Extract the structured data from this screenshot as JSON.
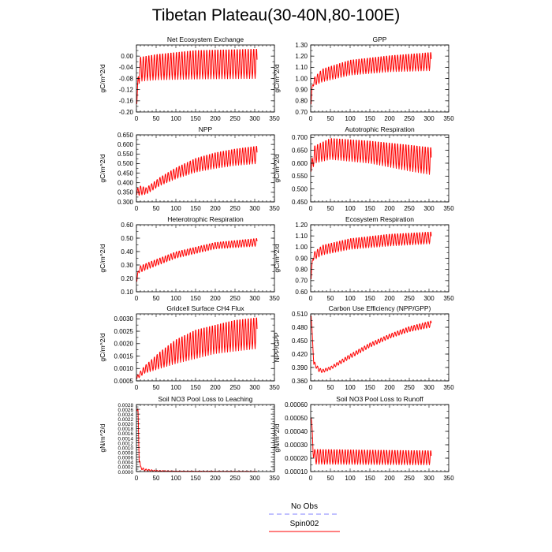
{
  "page": {
    "title": "Tibetan Plateau(30-40N,80-100E)"
  },
  "legend": {
    "entries": [
      {
        "name": "No Obs",
        "color": "#8080ff",
        "style": "dashed"
      },
      {
        "name": "Spin002",
        "color": "#ff0000",
        "style": "solid"
      }
    ]
  },
  "chart_data": [
    {
      "type": "line",
      "title": "Net Ecosystem Exchange",
      "ylabel": "gC/m^2/d",
      "xlim": [
        0,
        350
      ],
      "ylim": [
        -0.2,
        0.04
      ],
      "xticks": [
        "0",
        "50",
        "100",
        "150",
        "200",
        "250",
        "300",
        "350"
      ],
      "yticks": [
        "-0.20",
        "-0.16",
        "-0.12",
        "-0.08",
        "-0.04",
        "0.00"
      ],
      "series": [
        {
          "name": "Spin002",
          "color": "#ff0000",
          "x_end": 306,
          "period": 7,
          "upper": [
            [
              1,
              -0.155
            ],
            [
              6,
              -0.02
            ],
            [
              10,
              0.0
            ],
            [
              50,
              0.01
            ],
            [
              150,
              0.025
            ],
            [
              306,
              0.03
            ]
          ],
          "lower": [
            [
              1,
              -0.175
            ],
            [
              6,
              -0.1
            ],
            [
              10,
              -0.09
            ],
            [
              50,
              -0.085
            ],
            [
              150,
              -0.082
            ],
            [
              306,
              -0.08
            ]
          ]
        }
      ]
    },
    {
      "type": "line",
      "title": "GPP",
      "ylabel": "gC/m^2/d",
      "xlim": [
        0,
        350
      ],
      "ylim": [
        0.7,
        1.3
      ],
      "xticks": [
        "0",
        "50",
        "100",
        "150",
        "200",
        "250",
        "300",
        "350"
      ],
      "yticks": [
        "0.70",
        "0.80",
        "0.90",
        "1.00",
        "1.10",
        "1.20",
        "1.30"
      ],
      "series": [
        {
          "name": "Spin002",
          "color": "#ff0000",
          "x_end": 306,
          "period": 7,
          "upper": [
            [
              1,
              0.85
            ],
            [
              6,
              1.0
            ],
            [
              30,
              1.09
            ],
            [
              100,
              1.17
            ],
            [
              200,
              1.21
            ],
            [
              306,
              1.24
            ]
          ],
          "lower": [
            [
              1,
              0.75
            ],
            [
              6,
              0.93
            ],
            [
              30,
              0.97
            ],
            [
              100,
              1.03
            ],
            [
              200,
              1.06
            ],
            [
              306,
              1.07
            ]
          ]
        }
      ]
    },
    {
      "type": "line",
      "title": "NPP",
      "ylabel": "gC/m^2/d",
      "xlim": [
        0,
        350
      ],
      "ylim": [
        0.3,
        0.65
      ],
      "xticks": [
        "0",
        "50",
        "100",
        "150",
        "200",
        "250",
        "300",
        "350"
      ],
      "yticks": [
        "0.300",
        "0.350",
        "0.400",
        "0.450",
        "0.500",
        "0.550",
        "0.600",
        "0.650"
      ],
      "series": [
        {
          "name": "Spin002",
          "color": "#ff0000",
          "x_end": 306,
          "period": 7,
          "upper": [
            [
              1,
              0.37
            ],
            [
              10,
              0.385
            ],
            [
              25,
              0.375
            ],
            [
              60,
              0.43
            ],
            [
              100,
              0.48
            ],
            [
              150,
              0.53
            ],
            [
              200,
              0.56
            ],
            [
              250,
              0.58
            ],
            [
              306,
              0.595
            ]
          ],
          "lower": [
            [
              1,
              0.33
            ],
            [
              10,
              0.335
            ],
            [
              25,
              0.34
            ],
            [
              60,
              0.385
            ],
            [
              100,
              0.42
            ],
            [
              150,
              0.455
            ],
            [
              200,
              0.475
            ],
            [
              250,
              0.49
            ],
            [
              306,
              0.5
            ]
          ]
        }
      ]
    },
    {
      "type": "line",
      "title": "Autotrophic Respiration",
      "ylabel": "gC/m^2/d",
      "xlim": [
        0,
        350
      ],
      "ylim": [
        0.45,
        0.71
      ],
      "xticks": [
        "0",
        "50",
        "100",
        "150",
        "200",
        "250",
        "300",
        "350"
      ],
      "yticks": [
        "0.450",
        "0.500",
        "0.550",
        "0.600",
        "0.650",
        "0.700"
      ],
      "series": [
        {
          "name": "Spin002",
          "color": "#ff0000",
          "x_end": 306,
          "period": 7,
          "upper": [
            [
              1,
              0.6
            ],
            [
              10,
              0.67
            ],
            [
              50,
              0.7
            ],
            [
              150,
              0.69
            ],
            [
              250,
              0.675
            ],
            [
              306,
              0.665
            ]
          ],
          "lower": [
            [
              1,
              0.56
            ],
            [
              10,
              0.6
            ],
            [
              50,
              0.615
            ],
            [
              150,
              0.6
            ],
            [
              250,
              0.57
            ],
            [
              306,
              0.555
            ]
          ]
        }
      ]
    },
    {
      "type": "line",
      "title": "Heterotrophic Respiration",
      "ylabel": "gC/m^2/d",
      "xlim": [
        0,
        350
      ],
      "ylim": [
        0.1,
        0.6
      ],
      "xticks": [
        "0",
        "50",
        "100",
        "150",
        "200",
        "250",
        "300",
        "350"
      ],
      "yticks": [
        "0.10",
        "0.20",
        "0.30",
        "0.40",
        "0.50",
        "0.60"
      ],
      "series": [
        {
          "name": "Spin002",
          "color": "#ff0000",
          "x_end": 306,
          "period": 7,
          "upper": [
            [
              1,
              0.2
            ],
            [
              6,
              0.29
            ],
            [
              30,
              0.32
            ],
            [
              100,
              0.4
            ],
            [
              200,
              0.47
            ],
            [
              306,
              0.5
            ]
          ],
          "lower": [
            [
              1,
              0.17
            ],
            [
              6,
              0.24
            ],
            [
              30,
              0.27
            ],
            [
              100,
              0.35
            ],
            [
              200,
              0.42
            ],
            [
              306,
              0.44
            ]
          ]
        }
      ]
    },
    {
      "type": "line",
      "title": "Ecosystem Respiration",
      "ylabel": "gC/m^2/d",
      "xlim": [
        0,
        350
      ],
      "ylim": [
        0.6,
        1.2
      ],
      "xticks": [
        "0",
        "50",
        "100",
        "150",
        "200",
        "250",
        "300",
        "350"
      ],
      "yticks": [
        "0.60",
        "0.70",
        "0.80",
        "0.90",
        "1.00",
        "1.10",
        "1.20"
      ],
      "series": [
        {
          "name": "Spin002",
          "color": "#ff0000",
          "x_end": 306,
          "period": 7,
          "upper": [
            [
              1,
              0.77
            ],
            [
              6,
              0.95
            ],
            [
              30,
              1.02
            ],
            [
              100,
              1.08
            ],
            [
              200,
              1.12
            ],
            [
              306,
              1.14
            ]
          ],
          "lower": [
            [
              1,
              0.7
            ],
            [
              6,
              0.88
            ],
            [
              30,
              0.93
            ],
            [
              100,
              0.98
            ],
            [
              200,
              1.01
            ],
            [
              306,
              1.03
            ]
          ]
        }
      ]
    },
    {
      "type": "line",
      "title": "Gridcell Surface CH4 Flux",
      "ylabel": "gC/m^2/d",
      "xlim": [
        0,
        350
      ],
      "ylim": [
        0.0005,
        0.0032
      ],
      "xticks": [
        "0",
        "50",
        "100",
        "150",
        "200",
        "250",
        "300",
        "350"
      ],
      "yticks": [
        "0.0005",
        "0.0010",
        "0.0015",
        "0.0020",
        "0.0025",
        "0.0030"
      ],
      "series": [
        {
          "name": "Spin002",
          "color": "#ff0000",
          "x_end": 306,
          "period": 7,
          "upper": [
            [
              1,
              0.0007
            ],
            [
              20,
              0.0011
            ],
            [
              60,
              0.0017
            ],
            [
              100,
              0.0022
            ],
            [
              150,
              0.0026
            ],
            [
              200,
              0.0028
            ],
            [
              250,
              0.003
            ],
            [
              306,
              0.0031
            ]
          ],
          "lower": [
            [
              1,
              0.00055
            ],
            [
              20,
              0.0008
            ],
            [
              60,
              0.001
            ],
            [
              100,
              0.0012
            ],
            [
              150,
              0.0014
            ],
            [
              200,
              0.0016
            ],
            [
              250,
              0.0017
            ],
            [
              306,
              0.0018
            ]
          ]
        }
      ]
    },
    {
      "type": "line",
      "title": "Carbon Use Efficiency (NPP/GPP)",
      "ylabel": "NPP/GPP",
      "xlim": [
        0,
        350
      ],
      "ylim": [
        0.36,
        0.51
      ],
      "xticks": [
        "0",
        "50",
        "100",
        "150",
        "200",
        "250",
        "300",
        "350"
      ],
      "yticks": [
        "0.360",
        "0.390",
        "0.420",
        "0.450",
        "0.480",
        "0.510"
      ],
      "series": [
        {
          "name": "Spin002",
          "color": "#ff0000",
          "x_end": 306,
          "period": 7,
          "upper": [
            [
              1,
              0.51
            ],
            [
              3,
              0.48
            ],
            [
              8,
              0.405
            ],
            [
              20,
              0.39
            ],
            [
              30,
              0.386
            ],
            [
              50,
              0.392
            ],
            [
              100,
              0.42
            ],
            [
              150,
              0.445
            ],
            [
              200,
              0.465
            ],
            [
              250,
              0.482
            ],
            [
              306,
              0.495
            ]
          ],
          "lower": [
            [
              1,
              0.505
            ],
            [
              3,
              0.47
            ],
            [
              8,
              0.395
            ],
            [
              20,
              0.381
            ],
            [
              30,
              0.378
            ],
            [
              50,
              0.385
            ],
            [
              100,
              0.41
            ],
            [
              150,
              0.435
            ],
            [
              200,
              0.455
            ],
            [
              250,
              0.47
            ],
            [
              306,
              0.48
            ]
          ]
        }
      ]
    },
    {
      "type": "line",
      "title": "Soil NO3 Pool Loss to Leaching",
      "ylabel": "gN/m^2/d",
      "xlim": [
        0,
        350
      ],
      "ylim": [
        0,
        0.0028
      ],
      "xticks": [
        "0",
        "50",
        "100",
        "150",
        "200",
        "250",
        "300",
        "350"
      ],
      "yticks": [
        "0.0000",
        "0.0002",
        "0.0004",
        "0.0006",
        "0.0008",
        "0.0010",
        "0.0012",
        "0.0014",
        "0.0016",
        "0.0018",
        "0.0020",
        "0.0022",
        "0.0024",
        "0.0026",
        "0.0028"
      ],
      "series": [
        {
          "name": "Spin002",
          "color": "#ff0000",
          "x_end": 306,
          "period": 7,
          "upper": [
            [
              1,
              0.0027
            ],
            [
              4,
              0.0026
            ],
            [
              7,
              0.0012
            ],
            [
              10,
              0.00025
            ],
            [
              20,
              0.00012
            ],
            [
              50,
              5e-05
            ],
            [
              100,
              2e-05
            ],
            [
              306,
              1e-05
            ]
          ],
          "lower": [
            [
              1,
              0.0025
            ],
            [
              4,
              0.0022
            ],
            [
              7,
              0.0004
            ],
            [
              10,
              0.0001
            ],
            [
              20,
              3e-05
            ],
            [
              50,
              1e-05
            ],
            [
              306,
              0.0
            ]
          ]
        }
      ]
    },
    {
      "type": "line",
      "title": "Soil NO3 Pool Loss to Runoff",
      "ylabel": "gN/m^2/d",
      "xlim": [
        0,
        350
      ],
      "ylim": [
        0.0001,
        0.0006
      ],
      "xticks": [
        "0",
        "50",
        "100",
        "150",
        "200",
        "250",
        "300",
        "350"
      ],
      "yticks": [
        "0.00010",
        "0.00020",
        "0.00030",
        "0.00040",
        "0.00050",
        "0.00060"
      ],
      "series": [
        {
          "name": "Spin002",
          "color": "#ff0000",
          "x_end": 306,
          "period": 7,
          "upper": [
            [
              1,
              0.00058
            ],
            [
              3,
              0.00045
            ],
            [
              6,
              0.00032
            ],
            [
              10,
              0.00027
            ],
            [
              306,
              0.00026
            ]
          ],
          "lower": [
            [
              1,
              0.00048
            ],
            [
              3,
              0.00038
            ],
            [
              6,
              0.00022
            ],
            [
              10,
              0.000155
            ],
            [
              306,
              0.00015
            ]
          ]
        }
      ]
    }
  ]
}
